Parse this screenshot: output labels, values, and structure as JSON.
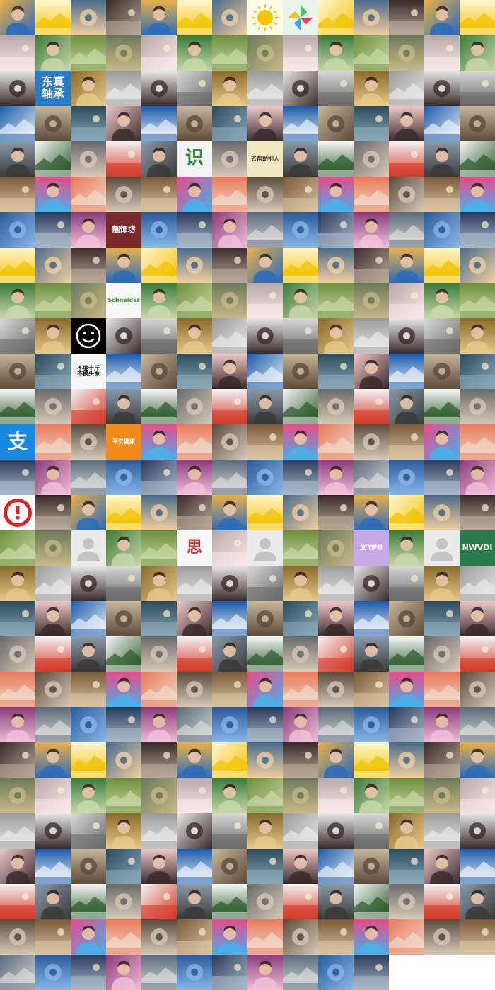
{
  "grid": {
    "columns": 14,
    "total_tiles": 389,
    "background": "#ffffff"
  },
  "palette": [
    [
      "#e8b04a",
      "#2d6bb8"
    ],
    [
      "#7a5a3a",
      "#d9c3a0"
    ],
    [
      "#c7b79a",
      "#5a4a38"
    ],
    [
      "#6e8f3c",
      "#c9d7a6"
    ],
    [
      "#8a3a7a",
      "#f0c0d8"
    ],
    [
      "#f4f4f4",
      "#d43a2a"
    ],
    [
      "#e8e8e8",
      "#3a2a2a"
    ],
    [
      "#fff6d0",
      "#f2c200"
    ],
    [
      "#e84a8a",
      "#4ab0e8"
    ],
    [
      "#2c4a5a",
      "#88a7b8"
    ],
    [
      "#6a7a5a",
      "#c8b888"
    ],
    [
      "#5a6a7a",
      "#d8d8d8"
    ],
    [
      "#8a9aa8",
      "#3a3a3a"
    ],
    [
      "#d8d8d8",
      "#6a6a6a"
    ],
    [
      "#4a6a8a",
      "#f0d0a0"
    ],
    [
      "#e87a5a",
      "#f0d8c8"
    ],
    [
      "#f0c8c8",
      "#3a2a2a"
    ],
    [
      "#b8a8a8",
      "#f8e8e8"
    ],
    [
      "#2a5a9a",
      "#88b8e8"
    ],
    [
      "#f8f8f8",
      "#2a5a2a"
    ],
    [
      "#8a6a2a",
      "#e8c88a"
    ],
    [
      "#3a2a2a",
      "#b8a898"
    ],
    [
      "#5a4a3a",
      "#d8c8b8"
    ],
    [
      "#1a5aa8",
      "#e8f0f8"
    ],
    [
      "#3a7a3a",
      "#c8d8a8"
    ],
    [
      "#2a3a5a",
      "#a8b8c8"
    ],
    [
      "#6a6a6a",
      "#d8c8b8"
    ],
    [
      "#9a9a9a",
      "#e8e8e8"
    ]
  ],
  "text_tiles": [
    {
      "index": 29,
      "lines": [
        "东真",
        "轴承"
      ],
      "bg": "#2a7ac8",
      "fg": "#ffffff",
      "size": 16
    },
    {
      "index": 61,
      "lines": [
        "识"
      ],
      "bg": "#f4f4f4",
      "fg": "#2a8a3a",
      "size": 26
    },
    {
      "index": 63,
      "lines": [
        "去帮助别人"
      ],
      "bg": "#f0e8c0",
      "fg": "#3a3a3a",
      "size": 8
    },
    {
      "index": 87,
      "lines": [
        "靓饰坊"
      ],
      "bg": "#7a2a2a",
      "fg": "#ffffff",
      "size": 11
    },
    {
      "index": 115,
      "lines": [
        "Schneider"
      ],
      "bg": "#f8f8f8",
      "fg": "#3a9a3a",
      "size": 8
    },
    {
      "index": 142,
      "lines": [
        "不度十斤",
        "不换头像"
      ],
      "bg": "#f8f8f8",
      "fg": "#1a1a1a",
      "size": 8
    },
    {
      "index": 168,
      "lines": [
        "支"
      ],
      "bg": "#1a8ae0",
      "fg": "#ffffff",
      "size": 28
    },
    {
      "index": 171,
      "lines": [
        "平安健康"
      ],
      "bg": "#f08a1a",
      "fg": "#ffffff",
      "size": 8
    },
    {
      "index": 220,
      "lines": [
        "放飞梦想"
      ],
      "bg": "#c8a8e8",
      "fg": "#ffffff",
      "size": 8
    },
    {
      "index": 215,
      "lines": [
        "思"
      ],
      "bg": "#f8f8f8",
      "fg": "#c83a3a",
      "size": 22
    },
    {
      "index": 223,
      "lines": [
        "NWVDI"
      ],
      "bg": "#2a7a4a",
      "fg": "#ffffff",
      "size": 11
    }
  ],
  "special_tiles": [
    {
      "index": 196,
      "kind": "alert"
    },
    {
      "index": 212,
      "kind": "placeholder"
    },
    {
      "index": 217,
      "kind": "placeholder"
    },
    {
      "index": 222,
      "kind": "placeholder"
    },
    {
      "index": 128,
      "kind": "smiley"
    },
    {
      "index": 7,
      "kind": "sun"
    },
    {
      "index": 8,
      "kind": "pinwheel"
    }
  ]
}
